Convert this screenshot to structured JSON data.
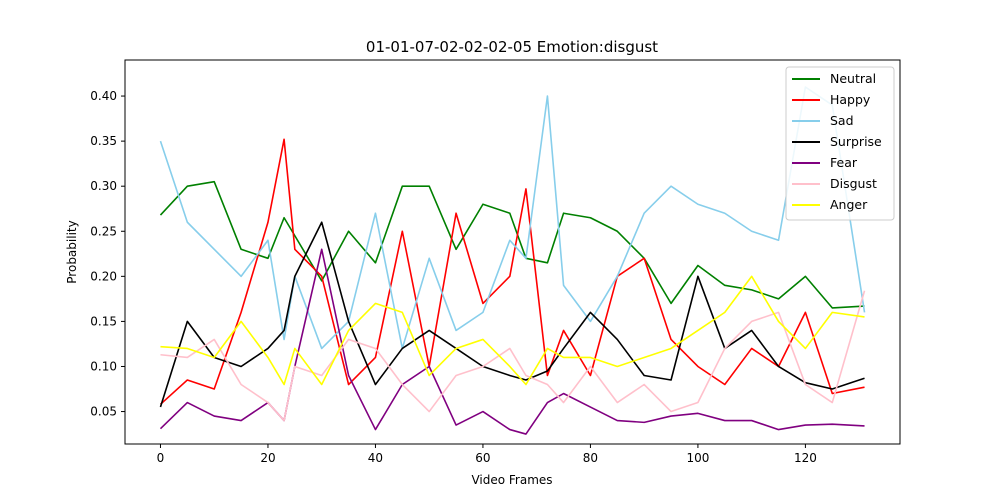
{
  "chart_data": {
    "type": "line",
    "title": "01-01-07-02-02-02-05 Emotion:disgust",
    "xlabel": "Video Frames",
    "ylabel": "Probability",
    "xlim": [
      -6.6,
      137.6
    ],
    "ylim": [
      0.014,
      0.44
    ],
    "xticks": [
      0,
      20,
      40,
      60,
      80,
      100,
      120
    ],
    "xtick_labels": [
      "0",
      "20",
      "40",
      "60",
      "80",
      "100",
      "120"
    ],
    "yticks": [
      0.05,
      0.1,
      0.15,
      0.2,
      0.25,
      0.3,
      0.35,
      0.4
    ],
    "ytick_labels": [
      "0.05",
      "0.10",
      "0.15",
      "0.20",
      "0.25",
      "0.30",
      "0.35",
      "0.40"
    ],
    "grid": false,
    "legend_position": "top-right",
    "x": [
      0,
      5,
      10,
      15,
      20,
      23,
      25,
      30,
      35,
      40,
      45,
      50,
      55,
      60,
      65,
      68,
      72,
      75,
      80,
      85,
      90,
      95,
      100,
      105,
      110,
      115,
      120,
      125,
      131
    ],
    "series": [
      {
        "name": "Neutral",
        "color": "#008000",
        "values": [
          0.268,
          0.3,
          0.305,
          0.23,
          0.22,
          0.265,
          0.245,
          0.195,
          0.25,
          0.215,
          0.3,
          0.3,
          0.23,
          0.28,
          0.27,
          0.22,
          0.215,
          0.27,
          0.265,
          0.25,
          0.22,
          0.17,
          0.212,
          0.19,
          0.185,
          0.175,
          0.2,
          0.165,
          0.167
        ]
      },
      {
        "name": "Happy",
        "color": "#ff0000",
        "values": [
          0.058,
          0.085,
          0.075,
          0.16,
          0.26,
          0.352,
          0.23,
          0.2,
          0.08,
          0.11,
          0.25,
          0.1,
          0.27,
          0.17,
          0.2,
          0.297,
          0.09,
          0.14,
          0.09,
          0.2,
          0.22,
          0.13,
          0.1,
          0.08,
          0.12,
          0.1,
          0.16,
          0.07,
          0.077
        ]
      },
      {
        "name": "Sad",
        "color": "#87ceeb",
        "values": [
          0.35,
          0.26,
          0.23,
          0.2,
          0.24,
          0.13,
          0.2,
          0.12,
          0.15,
          0.27,
          0.12,
          0.22,
          0.14,
          0.16,
          0.24,
          0.22,
          0.4,
          0.19,
          0.15,
          0.2,
          0.27,
          0.3,
          0.28,
          0.27,
          0.25,
          0.24,
          0.41,
          0.39,
          0.16
        ]
      },
      {
        "name": "Surprise",
        "color": "#000000",
        "values": [
          0.055,
          0.15,
          0.11,
          0.1,
          0.12,
          0.14,
          0.2,
          0.26,
          0.15,
          0.08,
          0.12,
          0.14,
          0.12,
          0.1,
          0.09,
          0.085,
          0.095,
          0.12,
          0.16,
          0.13,
          0.09,
          0.085,
          0.2,
          0.12,
          0.14,
          0.1,
          0.082,
          0.075,
          0.087
        ]
      },
      {
        "name": "Fear",
        "color": "#800080",
        "values": [
          0.031,
          0.06,
          0.045,
          0.04,
          0.06,
          0.04,
          0.1,
          0.23,
          0.09,
          0.03,
          0.08,
          0.1,
          0.035,
          0.05,
          0.03,
          0.025,
          0.06,
          0.07,
          0.055,
          0.04,
          0.038,
          0.045,
          0.048,
          0.04,
          0.04,
          0.03,
          0.035,
          0.036,
          0.034
        ]
      },
      {
        "name": "Disgust",
        "color": "#ffc0cb",
        "values": [
          0.113,
          0.11,
          0.13,
          0.08,
          0.06,
          0.04,
          0.1,
          0.09,
          0.13,
          0.12,
          0.08,
          0.05,
          0.09,
          0.1,
          0.12,
          0.09,
          0.08,
          0.06,
          0.1,
          0.06,
          0.08,
          0.05,
          0.06,
          0.12,
          0.15,
          0.16,
          0.08,
          0.06,
          0.184
        ]
      },
      {
        "name": "Anger",
        "color": "#ffff00",
        "values": [
          0.122,
          0.12,
          0.11,
          0.15,
          0.11,
          0.08,
          0.12,
          0.08,
          0.14,
          0.17,
          0.16,
          0.09,
          0.12,
          0.13,
          0.1,
          0.08,
          0.12,
          0.11,
          0.11,
          0.1,
          0.11,
          0.12,
          0.14,
          0.16,
          0.2,
          0.15,
          0.12,
          0.16,
          0.155
        ]
      }
    ]
  }
}
